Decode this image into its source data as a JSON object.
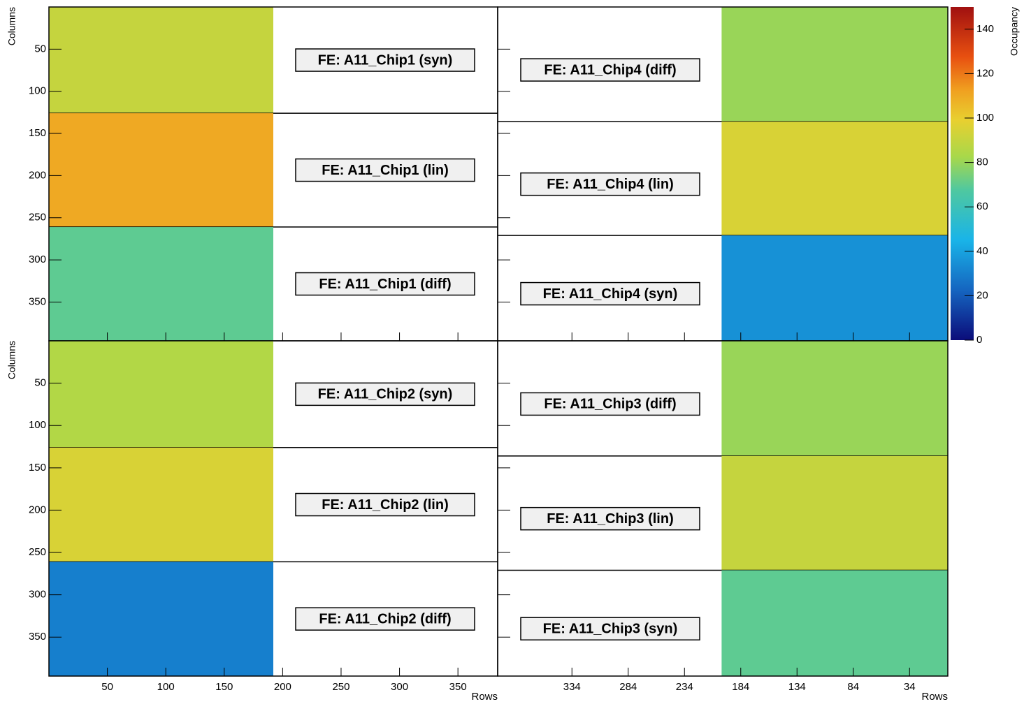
{
  "chart_data": {
    "type": "heatmap",
    "ylabel": "Columns",
    "ylim": [
      0,
      396
    ],
    "yticks": [
      50,
      100,
      150,
      200,
      250,
      300,
      350
    ],
    "axes": [
      {
        "xlabel": "Rows",
        "xlim": [
          0,
          384
        ],
        "xticks": [
          50,
          100,
          150,
          200,
          250,
          300,
          350
        ]
      },
      {
        "xlabel": "Rows",
        "xlim": [
          400,
          0
        ],
        "xticks": [
          334,
          284,
          234,
          184,
          134,
          84,
          34
        ]
      }
    ],
    "colorbar": {
      "label": "Occupancy",
      "lim": [
        0,
        150
      ],
      "ticks": [
        0,
        20,
        40,
        60,
        80,
        100,
        120,
        140
      ]
    },
    "quadrants": [
      {
        "panels": [
          {
            "label": "FE: A11_Chip1 (syn)",
            "value": 90,
            "rows": [
              0,
              192
            ],
            "columns": [
              0,
              126
            ]
          },
          {
            "label": "FE: A11_Chip1 (lin)",
            "value": 110,
            "rows": [
              0,
              192
            ],
            "columns": [
              126,
              261
            ]
          },
          {
            "label": "FE: A11_Chip1 (diff)",
            "value": 70,
            "rows": [
              0,
              192
            ],
            "columns": [
              261,
              396
            ]
          }
        ]
      },
      {
        "panels": [
          {
            "label": "FE: A11_Chip4 (diff)",
            "value": 80,
            "rows": [
              0,
              201
            ],
            "columns": [
              0,
              136
            ]
          },
          {
            "label": "FE: A11_Chip4 (lin)",
            "value": 95,
            "rows": [
              0,
              201
            ],
            "columns": [
              136,
              271
            ]
          },
          {
            "label": "FE: A11_Chip4 (syn)",
            "value": 35,
            "rows": [
              0,
              201
            ],
            "columns": [
              271,
              396
            ]
          }
        ]
      },
      {
        "panels": [
          {
            "label": "FE: A11_Chip2 (syn)",
            "value": 85,
            "rows": [
              0,
              192
            ],
            "columns": [
              0,
              126
            ]
          },
          {
            "label": "FE: A11_Chip2 (lin)",
            "value": 95,
            "rows": [
              0,
              192
            ],
            "columns": [
              126,
              261
            ]
          },
          {
            "label": "FE: A11_Chip2 (diff)",
            "value": 30,
            "rows": [
              0,
              192
            ],
            "columns": [
              261,
              396
            ]
          }
        ]
      },
      {
        "panels": [
          {
            "label": "FE: A11_Chip3 (diff)",
            "value": 80,
            "rows": [
              0,
              201
            ],
            "columns": [
              0,
              136
            ]
          },
          {
            "label": "FE: A11_Chip3 (lin)",
            "value": 90,
            "rows": [
              0,
              201
            ],
            "columns": [
              136,
              271
            ]
          },
          {
            "label": "FE: A11_Chip3 (syn)",
            "value": 70,
            "rows": [
              0,
              201
            ],
            "columns": [
              271,
              396
            ]
          }
        ]
      }
    ]
  }
}
